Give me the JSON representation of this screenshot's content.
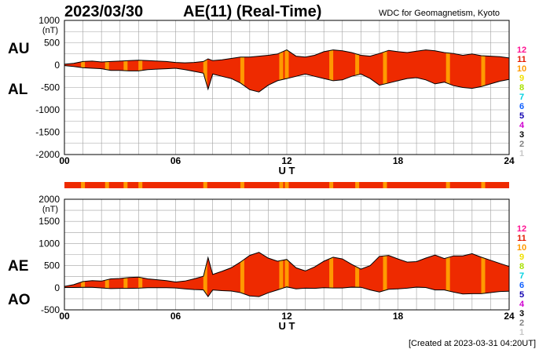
{
  "header": {
    "date": "2023/03/30",
    "title": "AE(11) (Real-Time)",
    "source": "WDC for Geomagnetism, Kyoto"
  },
  "labels": {
    "upper_pos": "AU",
    "upper_neg": "AL",
    "lower_pos": "AE",
    "lower_neg": "AO"
  },
  "footer": {
    "created": "[Created at 2023-03-31 04:20UT]"
  },
  "station_legend": {
    "items": [
      {
        "label": "12",
        "color": "#ff1493"
      },
      {
        "label": "11",
        "color": "#e31a00"
      },
      {
        "label": "10",
        "color": "#ff9a00"
      },
      {
        "label": "9",
        "color": "#f0e000"
      },
      {
        "label": "8",
        "color": "#a8e000"
      },
      {
        "label": "7",
        "color": "#00d0e0"
      },
      {
        "label": "6",
        "color": "#1060ff"
      },
      {
        "label": "5",
        "color": "#1000b0"
      },
      {
        "label": "4",
        "color": "#d000d0"
      },
      {
        "label": "3",
        "color": "#000000"
      },
      {
        "label": "2",
        "color": "#808080"
      },
      {
        "label": "1",
        "color": "#c8c8c8"
      }
    ]
  },
  "chart_data": [
    {
      "type": "area",
      "name": "AU/AL",
      "ylabel": "(nT)",
      "xlabel": "U T",
      "xlim": [
        0,
        24
      ],
      "ylim": [
        -2000,
        1000
      ],
      "yticks": [
        1000,
        500,
        0,
        -500,
        -1000,
        -1500,
        -2000
      ],
      "xticks": [
        {
          "v": 0,
          "label": "00"
        },
        {
          "v": 6,
          "label": "06"
        },
        {
          "v": 12,
          "label": "12"
        },
        {
          "v": 18,
          "label": "18"
        },
        {
          "v": 24,
          "label": "24"
        }
      ],
      "grid": true,
      "x": [
        0,
        0.5,
        1,
        1.5,
        2,
        2.5,
        3,
        3.5,
        4,
        4.5,
        5,
        5.5,
        6,
        6.5,
        7,
        7.5,
        7.75,
        8,
        8.5,
        9,
        9.5,
        10,
        10.5,
        11,
        11.5,
        12,
        12.5,
        13,
        13.5,
        14,
        14.5,
        15,
        15.5,
        16,
        16.5,
        17,
        17.5,
        18,
        18.5,
        19,
        19.5,
        20,
        20.5,
        21,
        21.5,
        22,
        22.5,
        23,
        23.5,
        24
      ],
      "au": [
        20,
        40,
        80,
        90,
        70,
        80,
        90,
        100,
        110,
        100,
        90,
        80,
        60,
        50,
        60,
        80,
        140,
        100,
        120,
        150,
        180,
        180,
        200,
        220,
        250,
        340,
        200,
        180,
        220,
        300,
        340,
        320,
        280,
        220,
        200,
        260,
        330,
        300,
        280,
        310,
        340,
        320,
        280,
        260,
        220,
        250,
        210,
        200,
        190,
        160
      ],
      "al": [
        -10,
        -30,
        -60,
        -70,
        -80,
        -120,
        -120,
        -130,
        -130,
        -100,
        -90,
        -80,
        -70,
        -100,
        -140,
        -180,
        -540,
        -200,
        -250,
        -300,
        -400,
        -550,
        -600,
        -450,
        -350,
        -300,
        -250,
        -200,
        -250,
        -300,
        -350,
        -330,
        -250,
        -200,
        -300,
        -450,
        -400,
        -350,
        -300,
        -280,
        -330,
        -420,
        -380,
        -460,
        -500,
        -520,
        -480,
        -420,
        -360,
        -320
      ]
    },
    {
      "type": "area",
      "name": "AE/AO",
      "ylabel": "(nT)",
      "xlabel": "U T",
      "xlim": [
        0,
        24
      ],
      "ylim": [
        -500,
        2000
      ],
      "yticks": [
        2000,
        1500,
        1000,
        500,
        0,
        -500
      ],
      "xticks": [
        {
          "v": 0,
          "label": "00"
        },
        {
          "v": 6,
          "label": "06"
        },
        {
          "v": 12,
          "label": "12"
        },
        {
          "v": 18,
          "label": "18"
        },
        {
          "v": 24,
          "label": "24"
        }
      ],
      "grid": true,
      "x": [
        0,
        0.5,
        1,
        1.5,
        2,
        2.5,
        3,
        3.5,
        4,
        4.5,
        5,
        5.5,
        6,
        6.5,
        7,
        7.5,
        7.75,
        8,
        8.5,
        9,
        9.5,
        10,
        10.5,
        11,
        11.5,
        12,
        12.5,
        13,
        13.5,
        14,
        14.5,
        15,
        15.5,
        16,
        16.5,
        17,
        17.5,
        18,
        18.5,
        19,
        19.5,
        20,
        20.5,
        21,
        21.5,
        22,
        22.5,
        23,
        23.5,
        24
      ],
      "ae": [
        30,
        70,
        140,
        160,
        150,
        200,
        210,
        230,
        240,
        200,
        180,
        160,
        130,
        150,
        200,
        260,
        680,
        300,
        370,
        450,
        580,
        730,
        800,
        670,
        600,
        640,
        450,
        380,
        470,
        600,
        690,
        650,
        530,
        420,
        500,
        710,
        730,
        650,
        580,
        590,
        670,
        740,
        660,
        720,
        720,
        770,
        690,
        620,
        550,
        480
      ],
      "ao": [
        5,
        5,
        10,
        10,
        -5,
        -20,
        -15,
        -15,
        -10,
        0,
        0,
        0,
        -5,
        -25,
        -40,
        -50,
        -200,
        -50,
        -65,
        -75,
        -110,
        -185,
        -200,
        -115,
        -50,
        20,
        -25,
        -10,
        -15,
        0,
        -5,
        -5,
        15,
        10,
        -50,
        -95,
        -35,
        -25,
        -10,
        15,
        5,
        -50,
        -50,
        -100,
        -140,
        -135,
        -135,
        -110,
        -85,
        -80
      ]
    }
  ]
}
